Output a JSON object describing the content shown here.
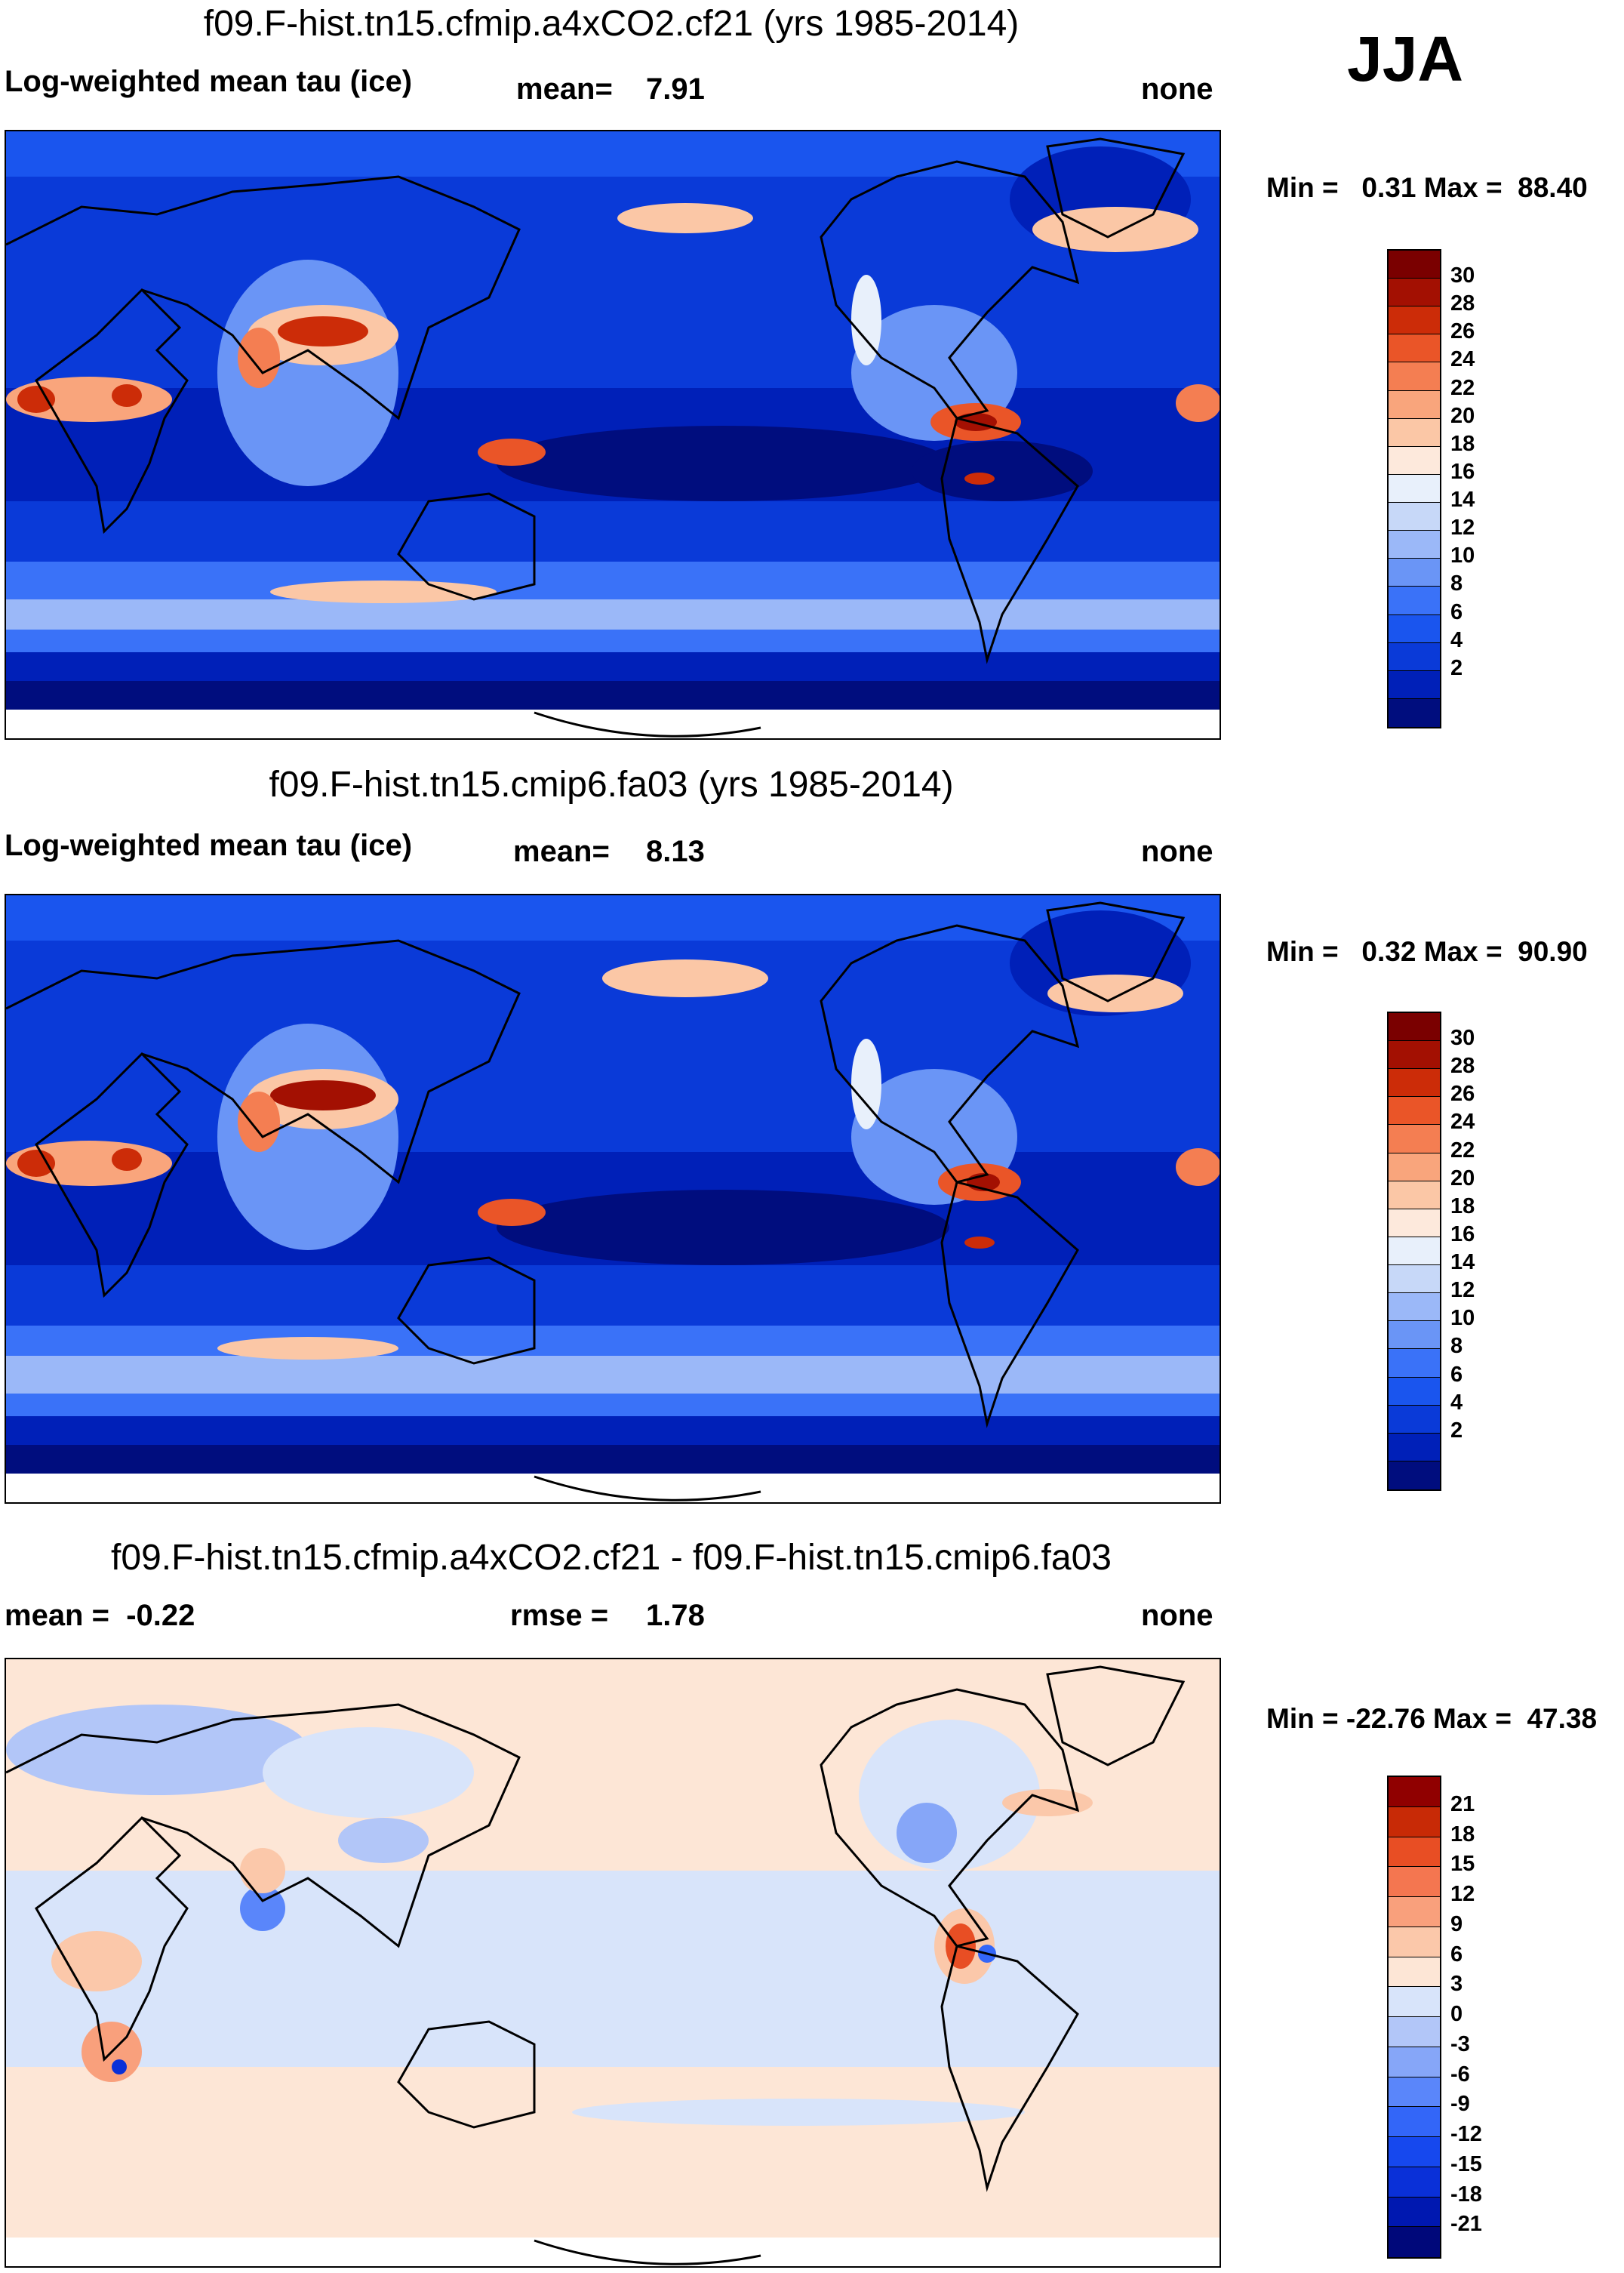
{
  "season": "JJA",
  "palettes": {
    "abs": [
      "#000d7e",
      "#0020b8",
      "#0a3ad8",
      "#1a55ee",
      "#3a72f8",
      "#6a95f6",
      "#9bb8f8",
      "#c7d8f8",
      "#e8f0fb",
      "#fde9dc",
      "#fbc7a6",
      "#f9a57c",
      "#f47e52",
      "#ea5528",
      "#cc2c08",
      "#a31002",
      "#7a0000"
    ],
    "diff": [
      "#00087a",
      "#0018b0",
      "#0a30d8",
      "#1648ee",
      "#3366f8",
      "#5a86fa",
      "#86a6f8",
      "#b2c6f8",
      "#d8e4fa",
      "#fde6d6",
      "#fbc8aa",
      "#f9a07c",
      "#f47650",
      "#e84e24",
      "#c82a06",
      "#900000"
    ]
  },
  "panels": [
    {
      "id": "panel1",
      "title": "f09.F-hist.tn15.cfmip.a4xCO2.cf21 (yrs 1985-2014)",
      "left_label": "Log-weighted mean tau (ice)",
      "mid_label": "mean=",
      "mid_value": "7.91",
      "right_label": "none",
      "min_max": "Min =   0.31 Max =  88.40",
      "colorbar_ticks": [
        "30",
        "28",
        "26",
        "24",
        "22",
        "20",
        "18",
        "16",
        "14",
        "12",
        "10",
        "8",
        "6",
        "4",
        "2"
      ]
    },
    {
      "id": "panel2",
      "title": "f09.F-hist.tn15.cmip6.fa03 (yrs 1985-2014)",
      "left_label": "Log-weighted mean tau (ice)",
      "mid_label": "mean=",
      "mid_value": "8.13",
      "right_label": "none",
      "min_max": "Min =   0.32 Max =  90.90",
      "colorbar_ticks": [
        "30",
        "28",
        "26",
        "24",
        "22",
        "20",
        "18",
        "16",
        "14",
        "12",
        "10",
        "8",
        "6",
        "4",
        "2"
      ]
    },
    {
      "id": "panel3",
      "title": "f09.F-hist.tn15.cfmip.a4xCO2.cf21 - f09.F-hist.tn15.cmip6.fa03",
      "left_label": "mean =  -0.22",
      "mid_label": "rmse =",
      "mid_value": "1.78",
      "right_label": "none",
      "min_max": "Min = -22.76 Max =  47.38",
      "colorbar_ticks": [
        "21",
        "18",
        "15",
        "12",
        "9",
        "6",
        "3",
        "0",
        "-3",
        "-6",
        "-9",
        "-12",
        "-15",
        "-18",
        "-21"
      ]
    }
  ]
}
